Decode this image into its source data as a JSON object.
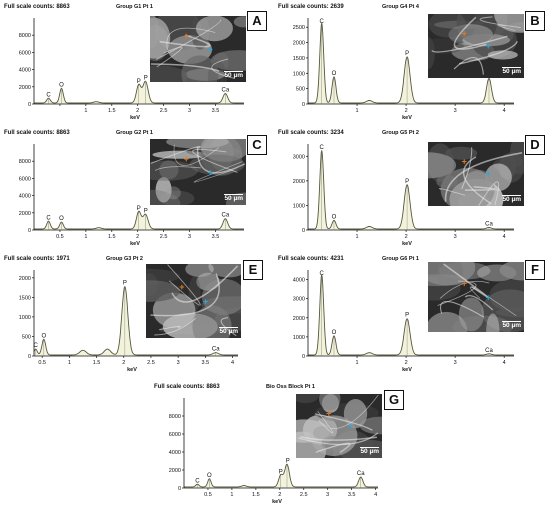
{
  "chart_data": [
    {
      "id": "A",
      "type": "line",
      "full_scale": "Full scale counts: 8863",
      "group": "Group G1 Pt 1",
      "xlabel": "keV",
      "xlim": [
        0,
        4.05
      ],
      "ylim": [
        0,
        10000
      ],
      "xticks": [
        {
          "v": 0.5,
          "l": ""
        },
        {
          "v": 1,
          "l": "1"
        },
        {
          "v": 1.5,
          "l": "1.5"
        },
        {
          "v": 2,
          "l": "2"
        },
        {
          "v": 2.5,
          "l": "2.5"
        },
        {
          "v": 3,
          "l": "3"
        },
        {
          "v": 3.5,
          "l": "3.5"
        }
      ],
      "yticks": [
        {
          "v": 0,
          "l": "0"
        },
        {
          "v": 2000,
          "l": "2000"
        },
        {
          "v": 4000,
          "l": "4000"
        },
        {
          "v": 6000,
          "l": "6000"
        },
        {
          "v": 8000,
          "l": "8000"
        }
      ],
      "peaks": [
        {
          "label": "C",
          "x": 0.28,
          "y": 550,
          "w": 0.035
        },
        {
          "label": "O",
          "x": 0.53,
          "y": 1700,
          "w": 0.035
        },
        {
          "label": "",
          "x": 1.2,
          "y": 150,
          "w": 0.05
        },
        {
          "label": "P",
          "x": 2.02,
          "y": 2100,
          "w": 0.045
        },
        {
          "label": "P",
          "x": 2.15,
          "y": 2500,
          "w": 0.05
        },
        {
          "label": "Ca",
          "x": 3.69,
          "y": 1100,
          "w": 0.045
        }
      ]
    },
    {
      "id": "B",
      "type": "line",
      "full_scale": "Full scale counts: 2639",
      "group": "Group G4 Pt 4",
      "xlabel": "keV",
      "xlim": [
        0,
        4.2
      ],
      "ylim": [
        0,
        2800
      ],
      "xticks": [
        {
          "v": 1,
          "l": "1"
        },
        {
          "v": 2,
          "l": "2"
        },
        {
          "v": 3,
          "l": "3"
        },
        {
          "v": 4,
          "l": "4"
        }
      ],
      "yticks": [
        {
          "v": 0,
          "l": "0"
        },
        {
          "v": 500,
          "l": "500"
        },
        {
          "v": 1000,
          "l": "1000"
        },
        {
          "v": 1500,
          "l": "1500"
        },
        {
          "v": 2000,
          "l": "2000"
        },
        {
          "v": 2500,
          "l": "2500"
        }
      ],
      "peaks": [
        {
          "label": "C",
          "x": 0.28,
          "y": 2600,
          "w": 0.04
        },
        {
          "label": "O",
          "x": 0.53,
          "y": 850,
          "w": 0.04
        },
        {
          "label": "",
          "x": 1.25,
          "y": 80,
          "w": 0.06
        },
        {
          "label": "P",
          "x": 2.02,
          "y": 1500,
          "w": 0.06
        },
        {
          "label": "Ca",
          "x": 3.69,
          "y": 800,
          "w": 0.05
        }
      ]
    },
    {
      "id": "C",
      "type": "line",
      "full_scale": "Full scale counts: 8863",
      "group": "Group G2 Pt 1",
      "xlabel": "keV",
      "xlim": [
        0,
        4.05
      ],
      "ylim": [
        0,
        10000
      ],
      "xticks": [
        {
          "v": 0.5,
          "l": "0.5"
        },
        {
          "v": 1,
          "l": "1"
        },
        {
          "v": 1.5,
          "l": "1.5"
        },
        {
          "v": 2,
          "l": "2"
        },
        {
          "v": 2.5,
          "l": "2.5"
        },
        {
          "v": 3,
          "l": "3"
        },
        {
          "v": 3.5,
          "l": "3.5"
        }
      ],
      "yticks": [
        {
          "v": 0,
          "l": "0"
        },
        {
          "v": 2000,
          "l": "2000"
        },
        {
          "v": 4000,
          "l": "4000"
        },
        {
          "v": 6000,
          "l": "6000"
        },
        {
          "v": 8000,
          "l": "8000"
        }
      ],
      "peaks": [
        {
          "label": "C",
          "x": 0.28,
          "y": 900,
          "w": 0.035
        },
        {
          "label": "O",
          "x": 0.53,
          "y": 800,
          "w": 0.035
        },
        {
          "label": "",
          "x": 1.25,
          "y": 150,
          "w": 0.05
        },
        {
          "label": "P",
          "x": 2.02,
          "y": 2000,
          "w": 0.045
        },
        {
          "label": "P",
          "x": 2.15,
          "y": 1700,
          "w": 0.05
        },
        {
          "label": "Ca",
          "x": 3.69,
          "y": 1200,
          "w": 0.045
        }
      ]
    },
    {
      "id": "D",
      "type": "line",
      "full_scale": "Full scale counts: 3234",
      "group": "Group G5 Pt 2",
      "xlabel": "keV",
      "xlim": [
        0,
        4.2
      ],
      "ylim": [
        0,
        3500
      ],
      "xticks": [
        {
          "v": 1,
          "l": "1"
        },
        {
          "v": 2,
          "l": "2"
        },
        {
          "v": 3,
          "l": "3"
        },
        {
          "v": 4,
          "l": "4"
        }
      ],
      "yticks": [
        {
          "v": 0,
          "l": "0"
        },
        {
          "v": 1000,
          "l": "1000"
        },
        {
          "v": 2000,
          "l": "2000"
        },
        {
          "v": 3000,
          "l": "3000"
        }
      ],
      "peaks": [
        {
          "label": "C",
          "x": 0.28,
          "y": 3200,
          "w": 0.04
        },
        {
          "label": "O",
          "x": 0.53,
          "y": 350,
          "w": 0.04
        },
        {
          "label": "",
          "x": 1.25,
          "y": 100,
          "w": 0.06
        },
        {
          "label": "P",
          "x": 2.02,
          "y": 1800,
          "w": 0.06
        },
        {
          "label": "Ca",
          "x": 3.69,
          "y": 60,
          "w": 0.05
        }
      ]
    },
    {
      "id": "E",
      "type": "line",
      "full_scale": "Full scale counts: 1971",
      "group": "Group G3 Pt 2",
      "xlabel": "keV",
      "xlim": [
        0.35,
        4.1
      ],
      "ylim": [
        0,
        2200
      ],
      "xticks": [
        {
          "v": 0.5,
          "l": "0.5"
        },
        {
          "v": 1,
          "l": "1"
        },
        {
          "v": 1.5,
          "l": "1.5"
        },
        {
          "v": 2,
          "l": "2"
        },
        {
          "v": 2.5,
          "l": "2.5"
        },
        {
          "v": 3,
          "l": "3"
        },
        {
          "v": 3.5,
          "l": "3.5"
        },
        {
          "v": 4,
          "l": "4"
        }
      ],
      "yticks": [
        {
          "v": 0,
          "l": "0"
        },
        {
          "v": 500,
          "l": "500"
        },
        {
          "v": 1000,
          "l": "1000"
        },
        {
          "v": 1500,
          "l": "1500"
        },
        {
          "v": 2000,
          "l": "2000"
        }
      ],
      "peaks": [
        {
          "label": "C",
          "x": 0.38,
          "y": 150,
          "w": 0.03
        },
        {
          "label": "O",
          "x": 0.53,
          "y": 400,
          "w": 0.035
        },
        {
          "label": "",
          "x": 1.25,
          "y": 120,
          "w": 0.06
        },
        {
          "label": "",
          "x": 1.7,
          "y": 150,
          "w": 0.06
        },
        {
          "label": "P",
          "x": 2.02,
          "y": 1750,
          "w": 0.055
        },
        {
          "label": "Ca",
          "x": 3.69,
          "y": 60,
          "w": 0.05
        }
      ]
    },
    {
      "id": "F",
      "type": "line",
      "full_scale": "Full scale counts: 4231",
      "group": "Group G6 Pt 1",
      "xlabel": "keV",
      "xlim": [
        0,
        4.2
      ],
      "ylim": [
        0,
        4500
      ],
      "xticks": [
        {
          "v": 1,
          "l": "1"
        },
        {
          "v": 2,
          "l": "2"
        },
        {
          "v": 3,
          "l": "3"
        },
        {
          "v": 4,
          "l": "4"
        }
      ],
      "yticks": [
        {
          "v": 0,
          "l": "0"
        },
        {
          "v": 1000,
          "l": "1000"
        },
        {
          "v": 2000,
          "l": "2000"
        },
        {
          "v": 3000,
          "l": "3000"
        },
        {
          "v": 4000,
          "l": "4000"
        }
      ],
      "peaks": [
        {
          "label": "C",
          "x": 0.28,
          "y": 4200,
          "w": 0.04
        },
        {
          "label": "O",
          "x": 0.53,
          "y": 1000,
          "w": 0.04
        },
        {
          "label": "",
          "x": 1.25,
          "y": 120,
          "w": 0.06
        },
        {
          "label": "P",
          "x": 2.02,
          "y": 1900,
          "w": 0.06
        },
        {
          "label": "Ca",
          "x": 3.69,
          "y": 60,
          "w": 0.05
        }
      ]
    },
    {
      "id": "G",
      "type": "line",
      "full_scale": "Full scale counts: 8863",
      "group": "Bio Oss Block Pt 1",
      "xlabel": "keV",
      "xlim": [
        0,
        4.05
      ],
      "ylim": [
        0,
        10000
      ],
      "xticks": [
        {
          "v": 0.5,
          "l": "0.5"
        },
        {
          "v": 1,
          "l": "1"
        },
        {
          "v": 1.5,
          "l": "1.5"
        },
        {
          "v": 2,
          "l": "2"
        },
        {
          "v": 2.5,
          "l": "2.5"
        },
        {
          "v": 3,
          "l": "3"
        },
        {
          "v": 3.5,
          "l": "3.5"
        },
        {
          "v": 4,
          "l": "4"
        }
      ],
      "yticks": [
        {
          "v": 0,
          "l": "0"
        },
        {
          "v": 2000,
          "l": "2000"
        },
        {
          "v": 4000,
          "l": "4000"
        },
        {
          "v": 6000,
          "l": "6000"
        },
        {
          "v": 8000,
          "l": "8000"
        }
      ],
      "peaks": [
        {
          "label": "C",
          "x": 0.28,
          "y": 300,
          "w": 0.035
        },
        {
          "label": "O",
          "x": 0.53,
          "y": 900,
          "w": 0.035
        },
        {
          "label": "",
          "x": 1.25,
          "y": 150,
          "w": 0.05
        },
        {
          "label": "P",
          "x": 2.02,
          "y": 1300,
          "w": 0.045
        },
        {
          "label": "P",
          "x": 2.15,
          "y": 2500,
          "w": 0.05
        },
        {
          "label": "Ca",
          "x": 3.69,
          "y": 1100,
          "w": 0.045
        }
      ]
    }
  ],
  "sem_images": [
    {
      "id": "A",
      "scale_bar": "50 µm",
      "markers": [
        {
          "symbol": "+",
          "color": "#e07a20"
        },
        {
          "symbol": "+",
          "color": "#2aa8d8"
        }
      ]
    },
    {
      "id": "B",
      "scale_bar": "50 µm",
      "markers": [
        {
          "symbol": "+",
          "color": "#e07a20"
        },
        {
          "symbol": "+",
          "color": "#2aa8d8"
        }
      ]
    },
    {
      "id": "C",
      "scale_bar": "50 µm",
      "markers": [
        {
          "symbol": "+",
          "color": "#e07a20"
        },
        {
          "symbol": "+",
          "color": "#2aa8d8"
        }
      ]
    },
    {
      "id": "D",
      "scale_bar": "50 µm",
      "markers": [
        {
          "symbol": "+",
          "color": "#e07a20"
        },
        {
          "symbol": "+",
          "color": "#2aa8d8"
        }
      ]
    },
    {
      "id": "E",
      "scale_bar": "50 µm",
      "markers": [
        {
          "symbol": "+",
          "color": "#e07a20"
        },
        {
          "symbol": "+",
          "color": "#2aa8d8"
        }
      ]
    },
    {
      "id": "F",
      "scale_bar": "50 µm",
      "markers": [
        {
          "symbol": "+",
          "color": "#e07a20"
        },
        {
          "symbol": "+",
          "color": "#2aa8d8"
        }
      ]
    },
    {
      "id": "G",
      "scale_bar": "50 µm",
      "markers": [
        {
          "symbol": "+",
          "color": "#e07a20"
        },
        {
          "symbol": "+",
          "color": "#2aa8d8"
        }
      ]
    }
  ],
  "colors": {
    "spectrum_line": "#55573c",
    "spectrum_fill": "#f3f3dc",
    "axis": "#111111"
  }
}
